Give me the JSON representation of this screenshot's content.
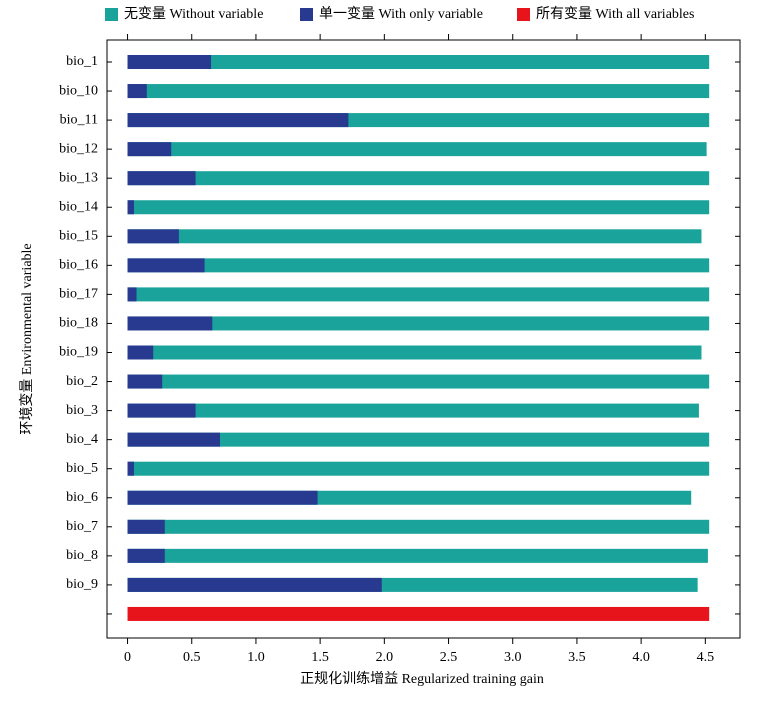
{
  "chart_data": {
    "type": "bar",
    "orientation": "horizontal",
    "overlay": true,
    "xlabel": "正规化训练增益 Regularized training gain",
    "ylabel": "环境变量 Environmental variable",
    "categories": [
      "bio_1",
      "bio_10",
      "bio_11",
      "bio_12",
      "bio_13",
      "bio_14",
      "bio_15",
      "bio_16",
      "bio_17",
      "bio_18",
      "bio_19",
      "bio_2",
      "bio_3",
      "bio_4",
      "bio_5",
      "bio_6",
      "bio_7",
      "bio_8",
      "bio_9",
      null
    ],
    "series": [
      {
        "name": "无变量 Without variable",
        "color": "#1aa39a",
        "values": [
          4.53,
          4.53,
          4.53,
          4.51,
          4.53,
          4.53,
          4.47,
          4.53,
          4.53,
          4.53,
          4.47,
          4.53,
          4.45,
          4.53,
          4.53,
          4.39,
          4.53,
          4.52,
          4.44,
          null
        ]
      },
      {
        "name": "单一变量 With only variable",
        "color": "#283a90",
        "values": [
          0.65,
          0.15,
          1.72,
          0.34,
          0.53,
          0.05,
          0.4,
          0.6,
          0.07,
          0.66,
          0.2,
          0.27,
          0.53,
          0.72,
          0.05,
          1.48,
          0.29,
          0.29,
          1.98,
          null
        ]
      },
      {
        "name": "所有变量 With all variables",
        "color": "#e8141c",
        "values": [
          null,
          null,
          null,
          null,
          null,
          null,
          null,
          null,
          null,
          null,
          null,
          null,
          null,
          null,
          null,
          null,
          null,
          null,
          null,
          4.53
        ]
      }
    ],
    "xlim": [
      -0.16,
      4.77
    ],
    "xticks": [
      0,
      0.5,
      {
        "value": 1,
        "label": "1.0"
      },
      1.5,
      {
        "value": 2,
        "label": "2.0"
      },
      2.5,
      {
        "value": 3,
        "label": "3.0"
      },
      3.5,
      {
        "value": 4,
        "label": "4.0"
      },
      4.5
    ],
    "legend": "top",
    "grid": false
  }
}
